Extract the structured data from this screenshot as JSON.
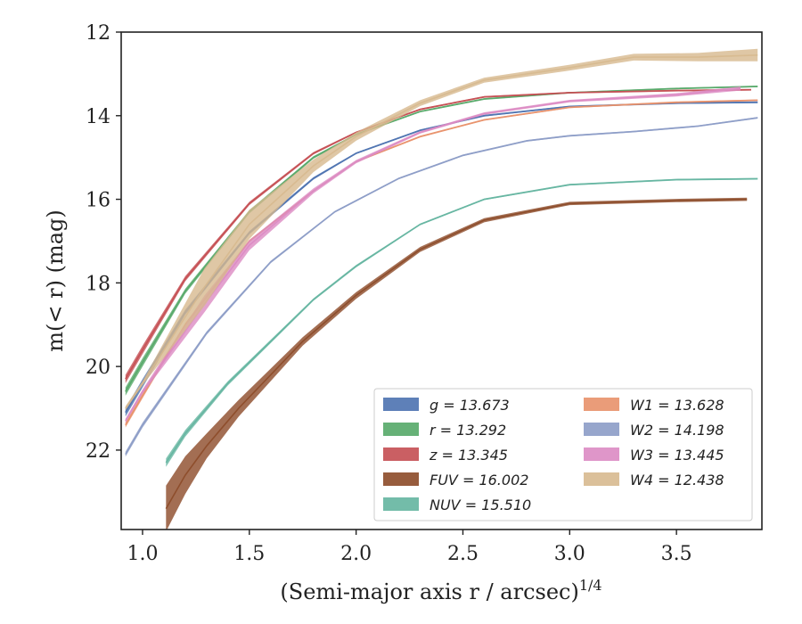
{
  "chart_data": {
    "type": "line",
    "title": "",
    "xlabel": "(Semi-major axis r / arcsec)",
    "xlabel_sup": "1/4",
    "ylabel": "m(< r) (mag)",
    "xlim": [
      0.9,
      3.9
    ],
    "ylim": [
      23.9,
      12.0
    ],
    "y_inverted": true,
    "grid": false,
    "legend_placement": "lower-right",
    "xticks": [
      1.0,
      1.5,
      2.0,
      2.5,
      3.0,
      3.5
    ],
    "xtick_labels": [
      "1.0",
      "1.5",
      "2.0",
      "2.5",
      "3.0",
      "3.5"
    ],
    "yticks": [
      12,
      14,
      16,
      18,
      20,
      22
    ],
    "ytick_labels": [
      "12",
      "14",
      "16",
      "18",
      "20",
      "22"
    ],
    "series": [
      {
        "name": "g",
        "label": "g = 13.673",
        "color": "#4c72b0",
        "x": [
          0.92,
          1.0,
          1.2,
          1.5,
          1.8,
          2.0,
          2.3,
          2.6,
          3.0,
          3.5,
          3.88
        ],
        "y": [
          21.1,
          20.4,
          18.7,
          16.8,
          15.5,
          14.9,
          14.35,
          14.0,
          13.78,
          13.7,
          13.68
        ],
        "err": [
          0.1,
          0.1,
          0.06,
          0.04,
          0.03,
          0.02,
          0.02,
          0.02,
          0.02,
          0.02,
          0.02
        ]
      },
      {
        "name": "r",
        "label": "r = 13.292",
        "color": "#55a868",
        "x": [
          0.92,
          1.0,
          1.2,
          1.5,
          1.8,
          2.0,
          2.3,
          2.6,
          3.0,
          3.5,
          3.88
        ],
        "y": [
          20.6,
          19.9,
          18.2,
          16.3,
          15.0,
          14.45,
          13.9,
          13.6,
          13.45,
          13.35,
          13.3
        ],
        "err": [
          0.1,
          0.1,
          0.06,
          0.04,
          0.03,
          0.02,
          0.02,
          0.02,
          0.02,
          0.02,
          0.02
        ]
      },
      {
        "name": "z",
        "label": "z = 13.345",
        "color": "#c44e52",
        "x": [
          0.92,
          1.0,
          1.2,
          1.5,
          1.8,
          2.0,
          2.3,
          2.6,
          3.0,
          3.5,
          3.85
        ],
        "y": [
          20.3,
          19.6,
          17.9,
          16.1,
          14.9,
          14.4,
          13.85,
          13.55,
          13.45,
          13.4,
          13.38
        ],
        "err": [
          0.1,
          0.1,
          0.06,
          0.04,
          0.03,
          0.02,
          0.02,
          0.02,
          0.02,
          0.02,
          0.02
        ]
      },
      {
        "name": "FUV",
        "label": "FUV = 16.002",
        "color": "#8c4a28",
        "x": [
          1.11,
          1.2,
          1.3,
          1.45,
          1.6,
          1.75,
          2.0,
          2.3,
          2.6,
          3.0,
          3.5,
          3.83
        ],
        "y": [
          23.4,
          22.6,
          21.9,
          21.0,
          20.2,
          19.4,
          18.3,
          17.2,
          16.5,
          16.1,
          16.03,
          16.0
        ],
        "err": [
          0.55,
          0.45,
          0.3,
          0.2,
          0.15,
          0.1,
          0.08,
          0.06,
          0.05,
          0.04,
          0.04,
          0.04
        ]
      },
      {
        "name": "NUV",
        "label": "NUV = 15.510",
        "color": "#64b5a0",
        "x": [
          1.11,
          1.2,
          1.4,
          1.6,
          1.8,
          2.0,
          2.3,
          2.6,
          3.0,
          3.5,
          3.88
        ],
        "y": [
          22.3,
          21.6,
          20.4,
          19.4,
          18.4,
          17.6,
          16.6,
          16.0,
          15.65,
          15.53,
          15.51
        ],
        "err": [
          0.1,
          0.08,
          0.05,
          0.04,
          0.03,
          0.03,
          0.02,
          0.02,
          0.02,
          0.02,
          0.02
        ]
      },
      {
        "name": "W1",
        "label": "W1 = 13.628",
        "color": "#e8916a",
        "x": [
          0.92,
          1.0,
          1.2,
          1.5,
          1.8,
          2.0,
          2.3,
          2.6,
          3.0,
          3.5,
          3.88
        ],
        "y": [
          21.4,
          20.7,
          19.0,
          17.0,
          15.8,
          15.1,
          14.5,
          14.1,
          13.8,
          13.68,
          13.63
        ],
        "err": [
          0.06,
          0.06,
          0.04,
          0.03,
          0.02,
          0.02,
          0.02,
          0.02,
          0.02,
          0.02,
          0.02
        ]
      },
      {
        "name": "W2",
        "label": "W2 = 14.198",
        "color": "#8c9cc6",
        "x": [
          0.92,
          1.0,
          1.3,
          1.6,
          1.9,
          2.2,
          2.5,
          2.8,
          3.0,
          3.3,
          3.6,
          3.88
        ],
        "y": [
          22.1,
          21.4,
          19.2,
          17.5,
          16.3,
          15.5,
          14.95,
          14.6,
          14.48,
          14.38,
          14.25,
          14.05
        ],
        "err": [
          0.06,
          0.06,
          0.04,
          0.03,
          0.02,
          0.02,
          0.02,
          0.02,
          0.02,
          0.02,
          0.02,
          0.02
        ]
      },
      {
        "name": "W3",
        "label": "W3 = 13.445",
        "color": "#dc8bc3",
        "x": [
          0.92,
          1.0,
          1.29,
          1.5,
          1.8,
          2.0,
          2.3,
          2.6,
          3.0,
          3.5,
          3.8
        ],
        "y": [
          21.3,
          20.6,
          18.5,
          17.1,
          15.8,
          15.1,
          14.4,
          13.95,
          13.65,
          13.5,
          13.35
        ],
        "err": [
          0.05,
          0.05,
          0.2,
          0.12,
          0.06,
          0.04,
          0.03,
          0.03,
          0.03,
          0.04,
          0.05
        ]
      },
      {
        "name": "W4",
        "label": "W4 = 12.438",
        "color": "#d7b98f",
        "x": [
          0.92,
          1.0,
          1.29,
          1.5,
          1.8,
          2.0,
          2.3,
          2.6,
          3.0,
          3.3,
          3.6,
          3.88
        ],
        "y": [
          21.0,
          20.4,
          18.1,
          16.6,
          15.2,
          14.5,
          13.7,
          13.15,
          12.85,
          12.6,
          12.6,
          12.55
        ],
        "err": [
          0.05,
          0.05,
          0.45,
          0.35,
          0.15,
          0.1,
          0.07,
          0.06,
          0.07,
          0.08,
          0.1,
          0.15
        ]
      }
    ]
  }
}
